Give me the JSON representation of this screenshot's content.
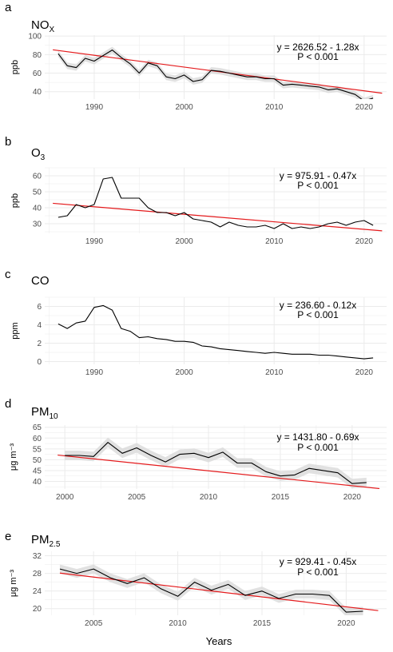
{
  "figure": {
    "xlabel": "Years"
  },
  "style": {
    "series_color": "#000000",
    "trend_color": "#e41a1c",
    "band_color": "#d9d9d9",
    "grid_color": "#ebebeb"
  },
  "chart_data": [
    {
      "type": "line",
      "letter": "a",
      "title": "NO",
      "title_sub": "X",
      "ylabel": "ppb",
      "xlim": [
        1984.5,
        2022.5
      ],
      "ylim": [
        32,
        101
      ],
      "yticks": [
        40,
        60,
        80,
        100
      ],
      "xticks": [
        1990,
        2000,
        2010,
        2020
      ],
      "x": [
        1986,
        1987,
        1988,
        1989,
        1990,
        1991,
        1992,
        1993,
        1994,
        1995,
        1996,
        1997,
        1998,
        1999,
        2000,
        2001,
        2002,
        2003,
        2004,
        2005,
        2006,
        2007,
        2008,
        2009,
        2010,
        2011,
        2012,
        2013,
        2014,
        2015,
        2016,
        2017,
        2018,
        2019,
        2020,
        2021
      ],
      "y": [
        81,
        68,
        66,
        76,
        73,
        79,
        85,
        77,
        70,
        60,
        71,
        68,
        56,
        54,
        58,
        51,
        53,
        63,
        62,
        60,
        58,
        56,
        56,
        54,
        54,
        47,
        48,
        47,
        46,
        45,
        42,
        43,
        40,
        37,
        30,
        33
      ],
      "band": 3.5,
      "trend": {
        "intercept": 2626.52,
        "slope": -1.28
      },
      "equation": "y = 2626.52 - 1.28x",
      "pvalue": "P < 0.001"
    },
    {
      "type": "line",
      "letter": "b",
      "title": "O",
      "title_sub": "3",
      "ylabel": "ppb",
      "xlim": [
        1984.5,
        2022.5
      ],
      "ylim": [
        24,
        65
      ],
      "yticks": [
        30,
        40,
        50,
        60
      ],
      "xticks": [
        1990,
        2000,
        2010,
        2020
      ],
      "x": [
        1986,
        1987,
        1988,
        1989,
        1990,
        1991,
        1992,
        1993,
        1994,
        1995,
        1996,
        1997,
        1998,
        1999,
        2000,
        2001,
        2002,
        2003,
        2004,
        2005,
        2006,
        2007,
        2008,
        2009,
        2010,
        2011,
        2012,
        2013,
        2014,
        2015,
        2016,
        2017,
        2018,
        2019,
        2020,
        2021
      ],
      "y": [
        34,
        35,
        42,
        40,
        42,
        58,
        59,
        46,
        46,
        46,
        40,
        37,
        37,
        35,
        37,
        33,
        32,
        31,
        28,
        31,
        29,
        28,
        28,
        29,
        27,
        30,
        27,
        28,
        27,
        28,
        30,
        31,
        29,
        31,
        32,
        29
      ],
      "band": 0,
      "trend": {
        "intercept": 975.91,
        "slope": -0.47
      },
      "equation": "y = 975.91 - 0.47x",
      "pvalue": "P < 0.001"
    },
    {
      "type": "line",
      "letter": "c",
      "title": "CO",
      "title_sub": "",
      "ylabel": "ppm",
      "xlim": [
        1984.5,
        2022.5
      ],
      "ylim": [
        -0.3,
        7
      ],
      "yticks": [
        0,
        2,
        4,
        6
      ],
      "xticks": [
        1990,
        2000,
        2010,
        2020
      ],
      "x": [
        1986,
        1987,
        1988,
        1989,
        1990,
        1991,
        1992,
        1993,
        1994,
        1995,
        1996,
        1997,
        1998,
        1999,
        2000,
        2001,
        2002,
        2003,
        2004,
        2005,
        2006,
        2007,
        2008,
        2009,
        2010,
        2011,
        2012,
        2013,
        2014,
        2015,
        2016,
        2017,
        2018,
        2019,
        2020,
        2021
      ],
      "y": [
        4.1,
        3.6,
        4.2,
        4.4,
        5.9,
        6.1,
        5.6,
        3.6,
        3.3,
        2.6,
        2.7,
        2.5,
        2.4,
        2.2,
        2.2,
        2.1,
        1.7,
        1.6,
        1.4,
        1.3,
        1.2,
        1.1,
        1.0,
        0.9,
        1.0,
        0.9,
        0.8,
        0.8,
        0.8,
        0.7,
        0.7,
        0.6,
        0.5,
        0.4,
        0.3,
        0.4
      ],
      "band": 0,
      "trend": {
        "intercept": 236.6,
        "slope": -0.12
      },
      "equation": "y = 236.60 - 0.12x",
      "pvalue": "P < 0.001"
    },
    {
      "type": "line",
      "letter": "d",
      "title": "PM",
      "title_sub": "10",
      "ylabel": "μg m⁻³",
      "xlim": [
        1998.6,
        2022.4
      ],
      "ylim": [
        36.5,
        66
      ],
      "yticks": [
        40,
        45,
        50,
        55,
        60,
        65
      ],
      "xticks": [
        2000,
        2005,
        2010,
        2015,
        2020
      ],
      "x": [
        2000,
        2001,
        2002,
        2003,
        2004,
        2005,
        2006,
        2007,
        2008,
        2009,
        2010,
        2011,
        2012,
        2013,
        2014,
        2015,
        2016,
        2017,
        2018,
        2019,
        2020,
        2021
      ],
      "y": [
        52,
        52,
        51.5,
        58,
        53,
        55.5,
        52,
        49,
        52.5,
        53,
        51,
        53.5,
        48.5,
        48.5,
        44.5,
        42.5,
        43,
        46,
        45,
        44,
        39,
        39.5
      ],
      "band": 2.2,
      "trend": {
        "intercept": 1431.8,
        "slope": -0.69
      },
      "equation": "y = 1431.80 - 0.69x",
      "pvalue": "P < 0.001"
    },
    {
      "type": "line",
      "letter": "e",
      "title": "PM",
      "title_sub": "2.5",
      "ylabel": "μg m⁻³",
      "xlim": [
        2002.1,
        2022.4
      ],
      "ylim": [
        18.5,
        33
      ],
      "yticks": [
        20,
        24,
        28,
        32
      ],
      "xticks": [
        2005,
        2010,
        2015,
        2020
      ],
      "x": [
        2003,
        2004,
        2005,
        2006,
        2007,
        2008,
        2009,
        2010,
        2011,
        2012,
        2013,
        2014,
        2015,
        2016,
        2017,
        2018,
        2019,
        2020,
        2021
      ],
      "y": [
        29,
        28,
        29,
        27,
        25.7,
        27,
        24.5,
        22.8,
        26,
        24.2,
        25.5,
        23,
        24,
        22.3,
        23.3,
        23.3,
        23,
        19.2,
        19.4
      ],
      "band": 1.0,
      "trend": {
        "intercept": 929.41,
        "slope": -0.45
      },
      "equation": "y = 929.41 - 0.45x",
      "pvalue": "P < 0.001"
    }
  ]
}
